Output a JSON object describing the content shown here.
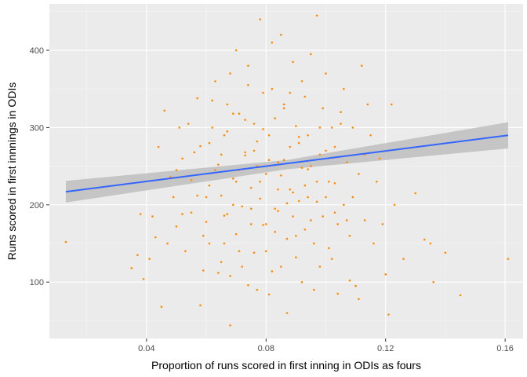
{
  "chart_data": {
    "type": "scatter",
    "title": "",
    "xlabel": "Proportion of runs scored in first inning in ODIs as fours",
    "ylabel": "Runs scored in first innnings in ODIs",
    "xlim": [
      0.0075,
      0.166
    ],
    "ylim": [
      27,
      460
    ],
    "x_ticks": [
      0.04,
      0.08,
      0.12,
      0.16
    ],
    "x_tick_labels": [
      "0.04",
      "0.08",
      "0.12",
      "0.16"
    ],
    "y_ticks": [
      100,
      200,
      300,
      400
    ],
    "y_tick_labels": [
      "100",
      "200",
      "300",
      "400"
    ],
    "grid": true,
    "legend": "none",
    "colors": {
      "panel_background": "#ebebeb",
      "grid_major": "#ffffff",
      "grid_minor": "#f5f5f5",
      "points": "#ff8c00",
      "trend_line": "#3366ff",
      "confidence_band": "#bebebe"
    },
    "series": [
      {
        "type": "points",
        "sampled": true,
        "points": [
          [
            0.013,
            152
          ],
          [
            0.035,
            118
          ],
          [
            0.037,
            135
          ],
          [
            0.038,
            188
          ],
          [
            0.039,
            104
          ],
          [
            0.041,
            130
          ],
          [
            0.042,
            185
          ],
          [
            0.043,
            158
          ],
          [
            0.044,
            275
          ],
          [
            0.045,
            68
          ],
          [
            0.046,
            322
          ],
          [
            0.047,
            150
          ],
          [
            0.049,
            210
          ],
          [
            0.05,
            245
          ],
          [
            0.051,
            300
          ],
          [
            0.052,
            188
          ],
          [
            0.053,
            140
          ],
          [
            0.055,
            232
          ],
          [
            0.056,
            268
          ],
          [
            0.057,
            338
          ],
          [
            0.058,
            70
          ],
          [
            0.059,
            115
          ],
          [
            0.06,
            178
          ],
          [
            0.061,
            225
          ],
          [
            0.062,
            300
          ],
          [
            0.063,
            360
          ],
          [
            0.064,
            112
          ],
          [
            0.065,
            265
          ],
          [
            0.066,
            150
          ],
          [
            0.067,
            330
          ],
          [
            0.068,
            44
          ],
          [
            0.069,
            200
          ],
          [
            0.07,
            400
          ],
          [
            0.071,
            245
          ],
          [
            0.072,
            120
          ],
          [
            0.073,
            310
          ],
          [
            0.074,
            380
          ],
          [
            0.075,
            175
          ],
          [
            0.076,
            270
          ],
          [
            0.077,
            90
          ],
          [
            0.078,
            230
          ],
          [
            0.079,
            345
          ],
          [
            0.08,
            140
          ],
          [
            0.081,
            290
          ],
          [
            0.082,
            410
          ],
          [
            0.083,
            195
          ],
          [
            0.084,
            255
          ],
          [
            0.085,
            120
          ],
          [
            0.086,
            325
          ],
          [
            0.087,
            60
          ],
          [
            0.088,
            220
          ],
          [
            0.089,
            385
          ],
          [
            0.09,
            160
          ],
          [
            0.091,
            280
          ],
          [
            0.092,
            100
          ],
          [
            0.093,
            340
          ],
          [
            0.094,
            210
          ],
          [
            0.095,
            250
          ],
          [
            0.096,
            150
          ],
          [
            0.097,
            445
          ],
          [
            0.098,
            300
          ],
          [
            0.099,
            185
          ],
          [
            0.1,
            370
          ],
          [
            0.101,
            230
          ],
          [
            0.102,
            130
          ],
          [
            0.103,
            275
          ],
          [
            0.104,
            85
          ],
          [
            0.105,
            320
          ],
          [
            0.106,
            200
          ],
          [
            0.107,
            255
          ],
          [
            0.108,
            160
          ],
          [
            0.109,
            300
          ],
          [
            0.11,
            95
          ],
          [
            0.111,
            240
          ],
          [
            0.112,
            380
          ],
          [
            0.113,
            180
          ],
          [
            0.114,
            330
          ],
          [
            0.116,
            150
          ],
          [
            0.118,
            260
          ],
          [
            0.12,
            110
          ],
          [
            0.121,
            58
          ],
          [
            0.122,
            330
          ],
          [
            0.123,
            200
          ],
          [
            0.126,
            130
          ],
          [
            0.13,
            215
          ],
          [
            0.133,
            155
          ],
          [
            0.135,
            150
          ],
          [
            0.136,
            100
          ],
          [
            0.14,
            138
          ],
          [
            0.145,
            83
          ],
          [
            0.161,
            130
          ],
          [
            0.078,
            440
          ],
          [
            0.085,
            420
          ],
          [
            0.095,
            395
          ],
          [
            0.068,
            370
          ],
          [
            0.092,
            360
          ],
          [
            0.074,
            355
          ],
          [
            0.088,
            345
          ],
          [
            0.062,
            335
          ],
          [
            0.099,
            325
          ],
          [
            0.071,
            318
          ],
          [
            0.083,
            312
          ],
          [
            0.105,
            305
          ],
          [
            0.067,
            295
          ],
          [
            0.091,
            288
          ],
          [
            0.077,
            282
          ],
          [
            0.058,
            276
          ],
          [
            0.1,
            270
          ],
          [
            0.073,
            264
          ],
          [
            0.086,
            258
          ],
          [
            0.064,
            252
          ],
          [
            0.094,
            246
          ],
          [
            0.08,
            240
          ],
          [
            0.069,
            234
          ],
          [
            0.103,
            228
          ],
          [
            0.075,
            222
          ],
          [
            0.089,
            216
          ],
          [
            0.06,
            210
          ],
          [
            0.097,
            204
          ],
          [
            0.072,
            198
          ],
          [
            0.084,
            192
          ],
          [
            0.066,
            186
          ],
          [
            0.107,
            180
          ],
          [
            0.079,
            174
          ],
          [
            0.093,
            168
          ],
          [
            0.07,
            162
          ],
          [
            0.087,
            156
          ],
          [
            0.061,
            150
          ],
          [
            0.101,
            144
          ],
          [
            0.076,
            138
          ],
          [
            0.09,
            132
          ],
          [
            0.065,
            126
          ],
          [
            0.098,
            120
          ],
          [
            0.082,
            114
          ],
          [
            0.068,
            108
          ],
          [
            0.108,
            102
          ],
          [
            0.074,
            96
          ],
          [
            0.096,
            90
          ],
          [
            0.081,
            84
          ],
          [
            0.111,
            78
          ],
          [
            0.055,
            190
          ],
          [
            0.052,
            260
          ],
          [
            0.048,
            236
          ],
          [
            0.05,
            172
          ],
          [
            0.054,
            305
          ],
          [
            0.057,
            212
          ],
          [
            0.115,
            290
          ],
          [
            0.117,
            230
          ],
          [
            0.119,
            175
          ],
          [
            0.113,
            265
          ],
          [
            0.109,
            210
          ],
          [
            0.106,
            350
          ],
          [
            0.104,
            175
          ],
          [
            0.102,
            300
          ],
          [
            0.065,
            212
          ],
          [
            0.071,
            140
          ],
          [
            0.076,
            305
          ],
          [
            0.083,
            165
          ],
          [
            0.088,
            275
          ],
          [
            0.093,
            225
          ],
          [
            0.098,
            265
          ],
          [
            0.063,
            245
          ],
          [
            0.067,
            188
          ],
          [
            0.073,
            268
          ],
          [
            0.078,
            208
          ],
          [
            0.085,
            238
          ],
          [
            0.09,
            302
          ],
          [
            0.095,
            180
          ],
          [
            0.1,
            210
          ],
          [
            0.059,
            160
          ],
          [
            0.061,
            280
          ],
          [
            0.069,
            318
          ],
          [
            0.075,
            195
          ],
          [
            0.081,
            258
          ],
          [
            0.087,
            202
          ],
          [
            0.092,
            248
          ],
          [
            0.097,
            230
          ],
          [
            0.103,
            190
          ],
          [
            0.079,
            298
          ],
          [
            0.084,
            220
          ],
          [
            0.089,
            185
          ],
          [
            0.094,
            290
          ],
          [
            0.07,
            230
          ],
          [
            0.066,
            290
          ],
          [
            0.08,
            175
          ],
          [
            0.086,
            330
          ],
          [
            0.091,
            205
          ],
          [
            0.082,
            350
          ],
          [
            0.077,
            250
          ]
        ]
      },
      {
        "type": "linear-fit",
        "x": [
          0.013,
          0.161
        ],
        "y": [
          217,
          290
        ]
      },
      {
        "type": "confidence-band",
        "x": [
          0.013,
          0.087,
          0.161
        ],
        "upper": [
          231,
          258,
          307
        ],
        "lower": [
          203,
          246,
          273
        ]
      }
    ]
  }
}
